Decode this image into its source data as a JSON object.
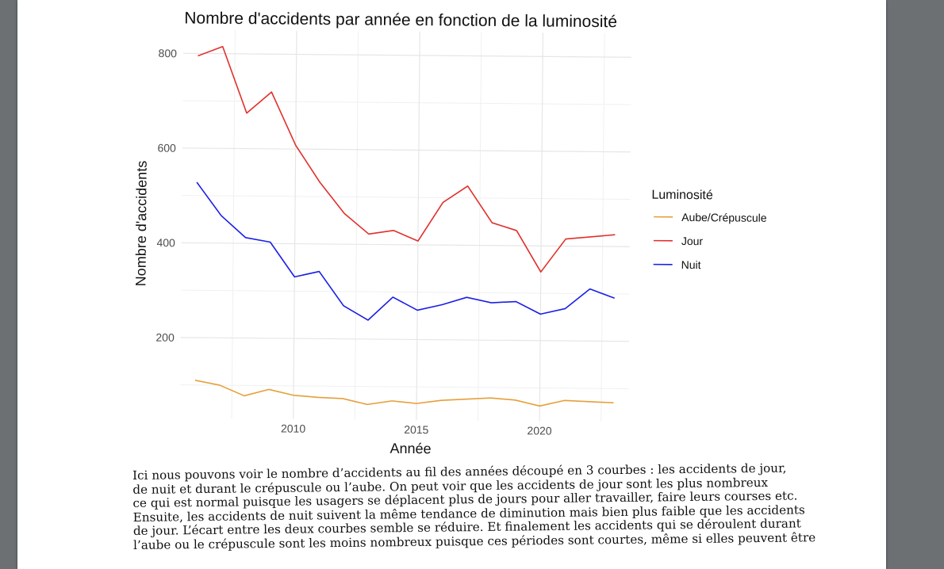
{
  "document": {
    "paragraph_lines": [
      "Ici nous pouvons voir le nombre d’accidents au fil des années découpé en 3 courbes : les accidents de jour,",
      "de nuit et durant le crépuscule ou l’aube. On peut voir que les accidents de jour sont les plus nombreux",
      "ce qui est normal puisque les usagers se déplacent plus de jours pour aller travailler, faire leurs courses etc.",
      "Ensuite, les accidents de nuit suivent la même tendance de diminution mais bien plus faible que les accidents",
      "de jour. L’écart entre les deux courbes semble se réduire. Et finalement les accidents qui se déroulent durant",
      "l’aube ou le crépuscule sont les moins nombreux puisque ces périodes sont courtes, même si elles peuvent être"
    ]
  },
  "chart_data": {
    "type": "line",
    "title": "Nombre d'accidents par année en fonction de la luminosité",
    "xlabel": "Année",
    "ylabel": "Nombre d'accidents",
    "xlim": [
      2005.4,
      2023.6
    ],
    "ylim": [
      30,
      850
    ],
    "x_ticks": [
      2010,
      2015,
      2020
    ],
    "y_ticks": [
      200,
      400,
      600,
      800
    ],
    "grid": true,
    "legend": {
      "title": "Luminosité",
      "position": "right"
    },
    "x": [
      2006,
      2007,
      2008,
      2009,
      2010,
      2011,
      2012,
      2013,
      2014,
      2015,
      2016,
      2017,
      2018,
      2019,
      2020,
      2021,
      2022,
      2023
    ],
    "series": [
      {
        "name": "Aube/Crépuscule",
        "color": "#e69f3a",
        "values": [
          110,
          100,
          78,
          92,
          80,
          76,
          74,
          62,
          70,
          65,
          72,
          75,
          78,
          74,
          62,
          74,
          72,
          70
        ]
      },
      {
        "name": "Jour",
        "color": "#e0302b",
        "values": [
          795,
          815,
          675,
          720,
          608,
          530,
          465,
          422,
          430,
          408,
          490,
          525,
          448,
          432,
          345,
          415,
          420,
          425
        ]
      },
      {
        "name": "Nuit",
        "color": "#1a1fe6",
        "values": [
          528,
          458,
          412,
          403,
          330,
          342,
          270,
          240,
          289,
          262,
          274,
          290,
          279,
          282,
          256,
          268,
          310,
          291
        ]
      }
    ]
  }
}
